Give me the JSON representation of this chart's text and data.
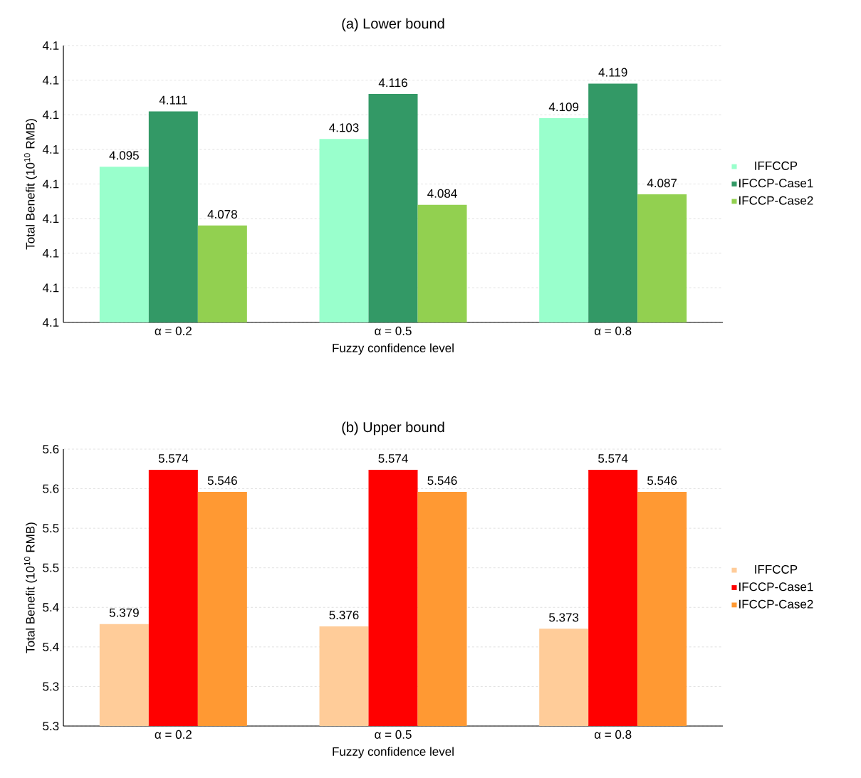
{
  "chart_data": [
    {
      "type": "bar",
      "title": "(a) Lower bound",
      "xlabel": "Fuzzy confidence level",
      "ylabel": "Total Benefit (10$^{10}$ RMB)",
      "categories": [
        "α = 0.2",
        "α = 0.5",
        "α = 0.8"
      ],
      "series": [
        {
          "name": "IFFCCP",
          "color": "#99ffcc",
          "values": [
            4.095,
            4.103,
            4.109
          ]
        },
        {
          "name": "IFCCP-Case1",
          "color": "#339966",
          "values": [
            4.111,
            4.116,
            4.119
          ]
        },
        {
          "name": "IFCCP-Case2",
          "color": "#92d050",
          "values": [
            4.078,
            4.084,
            4.087
          ]
        }
      ],
      "ylim": [
        4.05,
        4.13
      ],
      "yticks": [
        {
          "value": 4.05,
          "label": "4.1"
        },
        {
          "value": 4.06,
          "label": "4.1"
        },
        {
          "value": 4.07,
          "label": "4.1"
        },
        {
          "value": 4.08,
          "label": "4.1"
        },
        {
          "value": 4.09,
          "label": "4.1"
        },
        {
          "value": 4.1,
          "label": "4.1"
        },
        {
          "value": 4.11,
          "label": "4.1"
        },
        {
          "value": 4.12,
          "label": "4.1"
        },
        {
          "value": 4.13,
          "label": "4.1"
        }
      ],
      "grid": "y",
      "legend": "right",
      "data_labels": true
    },
    {
      "type": "bar",
      "title": "(b) Upper bound",
      "xlabel": "Fuzzy confidence level",
      "ylabel": "Total Benefit (10$^{10}$ RMB)",
      "categories": [
        "α = 0.2",
        "α = 0.5",
        "α = 0.8"
      ],
      "series": [
        {
          "name": "IFFCCP",
          "color": "#ffcc99",
          "values": [
            5.379,
            5.376,
            5.373
          ]
        },
        {
          "name": "IFCCP-Case1",
          "color": "#ff0000",
          "values": [
            5.574,
            5.574,
            5.574
          ]
        },
        {
          "name": "IFCCP-Case2",
          "color": "#ff9933",
          "values": [
            5.546,
            5.546,
            5.546
          ]
        }
      ],
      "ylim": [
        5.25,
        5.6
      ],
      "yticks": [
        {
          "value": 5.25,
          "label": "5.3"
        },
        {
          "value": 5.3,
          "label": "5.3"
        },
        {
          "value": 5.35,
          "label": "5.4"
        },
        {
          "value": 5.4,
          "label": "5.4"
        },
        {
          "value": 5.45,
          "label": "5.5"
        },
        {
          "value": 5.5,
          "label": "5.5"
        },
        {
          "value": 5.55,
          "label": "5.6"
        },
        {
          "value": 5.6,
          "label": "5.6"
        }
      ],
      "grid": "y",
      "legend": "right",
      "data_labels": true
    }
  ]
}
